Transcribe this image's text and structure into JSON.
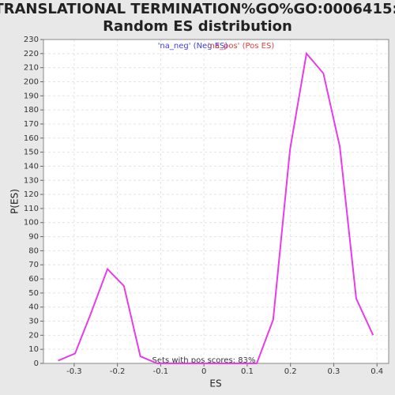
{
  "chart_data": {
    "type": "line",
    "title": "TRANSLATIONAL TERMINATION%GO%GO:0006415:",
    "subtitle": "Random ES distribution",
    "xlabel": "ES",
    "ylabel": "P(ES)",
    "annotation": "Sets with pos scores: 83%",
    "legend": [
      {
        "label": "'na_neg' (Neg ES)",
        "color": "#4040e0"
      },
      {
        "label": "'na_pos' (Pos ES)",
        "color": "#e04040"
      }
    ],
    "x": [
      -0.337,
      -0.298,
      -0.262,
      -0.223,
      -0.185,
      -0.147,
      -0.108,
      -0.07,
      -0.031,
      0.007,
      0.045,
      0.084,
      0.122,
      0.16,
      0.199,
      0.237,
      0.276,
      0.314,
      0.352,
      0.391
    ],
    "series": [
      {
        "name": "'na_pos' (Pos ES)",
        "color": "#e83ce8",
        "values": [
          2,
          7,
          35,
          67,
          55,
          5,
          0,
          0,
          0,
          0,
          0,
          0,
          0,
          31,
          152,
          220,
          206,
          154,
          46,
          20
        ]
      }
    ],
    "xlim": [
      -0.371,
      0.427
    ],
    "ylim": [
      0,
      230
    ],
    "xticks": [
      -0.3,
      -0.2,
      -0.1,
      0,
      0.1,
      0.2,
      0.3,
      0.4
    ],
    "yticks": [
      0,
      10,
      20,
      30,
      40,
      50,
      60,
      70,
      80,
      90,
      100,
      110,
      120,
      130,
      140,
      150,
      160,
      170,
      180,
      190,
      200,
      210,
      220,
      230
    ],
    "grid": true
  }
}
